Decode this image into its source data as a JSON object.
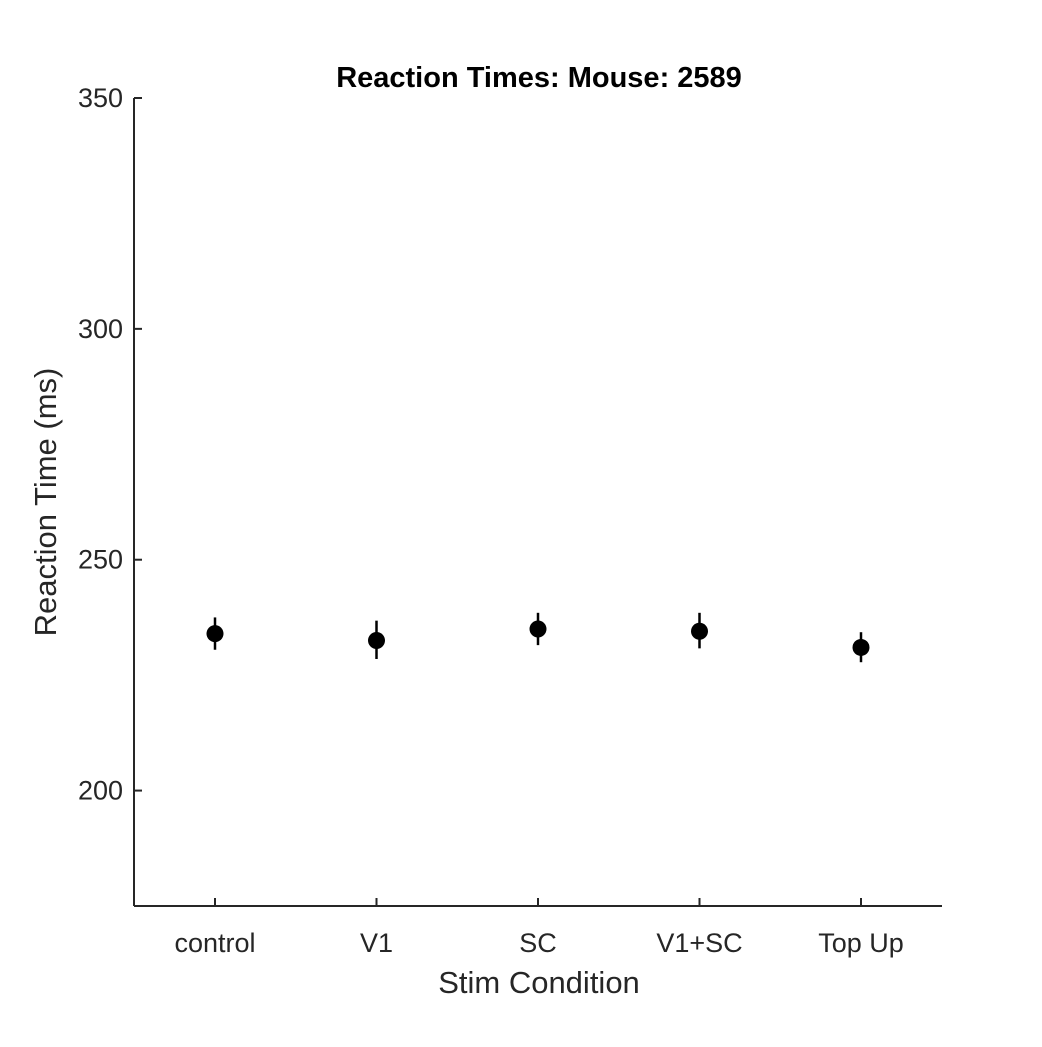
{
  "chart_data": {
    "type": "scatter",
    "title": "Reaction Times: Mouse: 2589",
    "xlabel": "Stim Condition",
    "ylabel": "Reaction Time (ms)",
    "categories": [
      "control",
      "V1",
      "SC",
      "V1+SC",
      "Top Up"
    ],
    "values": [
      234,
      232.5,
      235,
      234.5,
      231
    ],
    "error_low": [
      230.5,
      228.5,
      231.5,
      230.8,
      227.8
    ],
    "error_high": [
      237.5,
      236.8,
      238.5,
      238.5,
      234.3
    ],
    "ylim": [
      175,
      350
    ],
    "yticks": [
      200,
      250,
      300,
      350
    ],
    "grid": false,
    "marker_color": "#000000",
    "axis_color": "#262626"
  }
}
